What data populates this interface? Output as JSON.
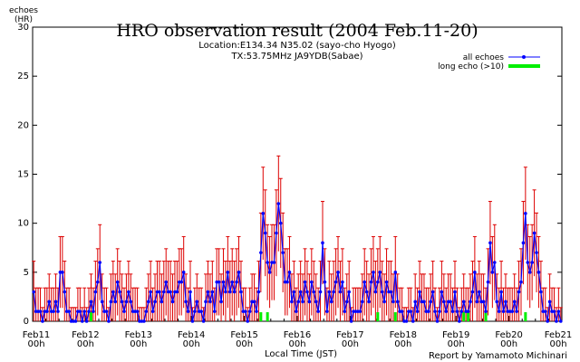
{
  "chart_data": {
    "type": "line",
    "title": "HRO observation result (2004 Feb.11-20)",
    "subtitle_lines": [
      "Location:E134.34 N35.02 (sayo-cho Hyogo)",
      "TX:53.75MHz JA9YDB(Sabae)"
    ],
    "ylabel_lines": [
      "echoes",
      "(HR)"
    ],
    "xlabel": "Local Time (JST)",
    "credit": "Report by Yamamoto Michinari",
    "ylim": [
      0,
      30
    ],
    "y_ticks": [
      "0",
      "5",
      "10",
      "15",
      "20",
      "25",
      "30"
    ],
    "x_ticks": [
      {
        "day": 0,
        "label": "Feb11",
        "sub": "00h"
      },
      {
        "day": 1,
        "label": "Feb12",
        "sub": "00h"
      },
      {
        "day": 2,
        "label": "Feb13",
        "sub": "00h"
      },
      {
        "day": 3,
        "label": "Feb14",
        "sub": "00h"
      },
      {
        "day": 4,
        "label": "Feb15",
        "sub": "00h"
      },
      {
        "day": 5,
        "label": "Feb16",
        "sub": "00h"
      },
      {
        "day": 6,
        "label": "Feb17",
        "sub": "00h"
      },
      {
        "day": 7,
        "label": "Feb18",
        "sub": "00h"
      },
      {
        "day": 8,
        "label": "Feb19",
        "sub": "00h"
      },
      {
        "day": 9,
        "label": "Feb20",
        "sub": "00h"
      },
      {
        "day": 10,
        "label": "Feb21",
        "sub": "00h"
      }
    ],
    "x_unit": "hours since Feb11 00h",
    "grid": false,
    "legend_position": "top-right",
    "series": [
      {
        "name": "all echoes",
        "color": "#0000ff",
        "error_color": "#dd0000",
        "x": [],
        "values": []
      },
      {
        "name": "long echo (>10)",
        "color": "#00ee00",
        "x": [],
        "values": []
      }
    ],
    "daily_all_echoes": [
      [
        3,
        1,
        1,
        1,
        0,
        1,
        1,
        2,
        1,
        1,
        2,
        1,
        5,
        5,
        3,
        1,
        1,
        0,
        0,
        0,
        1,
        1,
        0,
        1
      ],
      [
        0,
        1,
        2,
        1,
        3,
        4,
        6,
        2,
        1,
        1,
        0,
        2,
        3,
        2,
        4,
        3,
        2,
        1,
        2,
        3,
        2,
        1,
        1,
        1
      ],
      [
        0,
        0,
        0,
        1,
        2,
        3,
        1,
        2,
        3,
        3,
        2,
        3,
        4,
        3,
        3,
        2,
        3,
        3,
        4,
        4,
        5,
        2,
        1,
        3
      ],
      [
        0,
        1,
        2,
        1,
        1,
        0,
        2,
        3,
        2,
        3,
        1,
        4,
        4,
        2,
        4,
        3,
        5,
        3,
        4,
        3,
        4,
        5,
        3,
        1
      ],
      [
        1,
        0,
        1,
        2,
        2,
        1,
        3,
        7,
        11,
        9,
        6,
        5,
        6,
        6,
        9,
        12,
        10,
        7,
        4,
        4,
        5,
        2,
        3,
        1
      ],
      [
        2,
        3,
        2,
        4,
        3,
        2,
        4,
        3,
        2,
        1,
        3,
        8,
        4,
        1,
        3,
        2,
        3,
        4,
        5,
        3,
        4,
        1,
        2,
        3
      ],
      [
        0,
        1,
        1,
        1,
        1,
        2,
        4,
        3,
        2,
        4,
        5,
        3,
        4,
        5,
        3,
        2,
        4,
        3,
        3,
        2,
        5,
        2,
        1,
        1
      ],
      [
        0,
        0,
        1,
        1,
        0,
        2,
        1,
        3,
        2,
        2,
        1,
        1,
        2,
        3,
        1,
        0,
        1,
        3,
        2,
        1,
        2,
        2,
        1,
        3
      ],
      [
        1,
        0,
        1,
        2,
        1,
        1,
        2,
        3,
        5,
        2,
        3,
        2,
        2,
        1,
        4,
        8,
        5,
        6,
        2,
        1,
        3,
        1,
        2,
        1
      ],
      [
        1,
        1,
        2,
        1,
        3,
        4,
        8,
        11,
        6,
        5,
        6,
        9,
        7,
        5,
        3,
        1,
        1,
        0,
        2,
        1,
        1,
        0,
        1,
        0
      ]
    ],
    "long_echo_hours": [
      {
        "day": 1,
        "hour": 2,
        "value": 1
      },
      {
        "day": 4,
        "hour": 7,
        "value": 1
      },
      {
        "day": 4,
        "hour": 10,
        "value": 1
      },
      {
        "day": 6,
        "hour": 12,
        "value": 1
      },
      {
        "day": 6,
        "hour": 20,
        "value": 1
      },
      {
        "day": 8,
        "hour": 3,
        "value": 1
      },
      {
        "day": 8,
        "hour": 5,
        "value": 1
      },
      {
        "day": 8,
        "hour": 13,
        "value": 1
      },
      {
        "day": 9,
        "hour": 7,
        "value": 1
      }
    ]
  }
}
